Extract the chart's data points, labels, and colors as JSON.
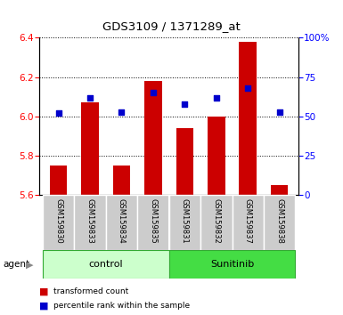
{
  "title": "GDS3109 / 1371289_at",
  "samples": [
    "GSM159830",
    "GSM159833",
    "GSM159834",
    "GSM159835",
    "GSM159831",
    "GSM159832",
    "GSM159837",
    "GSM159838"
  ],
  "red_values": [
    5.75,
    6.07,
    5.75,
    6.18,
    5.94,
    6.0,
    6.38,
    5.65
  ],
  "blue_values": [
    52,
    62,
    53,
    65,
    58,
    62,
    68,
    53
  ],
  "ylim_left": [
    5.6,
    6.4
  ],
  "ylim_right": [
    0,
    100
  ],
  "yticks_left": [
    5.6,
    5.8,
    6.0,
    6.2,
    6.4
  ],
  "yticks_right": [
    0,
    25,
    50,
    75,
    100
  ],
  "ytick_labels_right": [
    "0",
    "25",
    "50",
    "75",
    "100%"
  ],
  "bar_color": "#cc0000",
  "square_color": "#0000cc",
  "bar_bottom": 5.6,
  "ctrl_color": "#ccffcc",
  "sunit_color": "#44dd44",
  "agent_label": "agent",
  "legend_red": "transformed count",
  "legend_blue": "percentile rank within the sample",
  "background_color": "#ffffff",
  "xticklabel_bg": "#cccccc"
}
